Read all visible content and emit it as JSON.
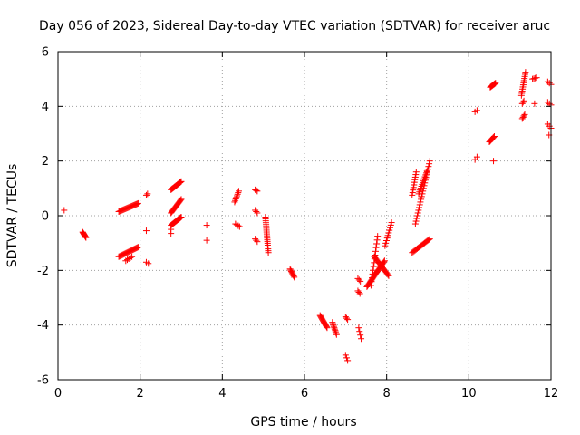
{
  "chart_data": {
    "type": "scatter",
    "title": "Day 056 of 2023, Sidereal Day-to-day VTEC variation (SDTVAR) for receiver aruc",
    "xlabel": "GPS time / hours",
    "ylabel": "SDTVAR / TECUs",
    "xlim": [
      0,
      12
    ],
    "ylim": [
      -6,
      6
    ],
    "xticks": [
      0,
      2,
      4,
      6,
      8,
      10,
      12
    ],
    "yticks": [
      -6,
      -4,
      -2,
      0,
      2,
      4,
      6
    ],
    "xtick_labels": [
      "0",
      "2",
      "4",
      "6",
      "8",
      "10",
      "12"
    ],
    "ytick_labels": [
      "-6",
      "-4",
      "-2",
      "0",
      "2",
      "4",
      "6"
    ],
    "grid": true,
    "marker": "+",
    "marker_color": "#ff0000",
    "segments": [
      [
        0.15,
        0.2,
        0.15,
        0.2,
        1
      ],
      [
        0.6,
        -0.6,
        0.68,
        -0.8,
        9
      ],
      [
        1.48,
        0.15,
        1.95,
        0.45,
        22
      ],
      [
        1.48,
        -1.5,
        1.95,
        -1.15,
        22
      ],
      [
        1.65,
        -1.65,
        1.8,
        -1.5,
        5
      ],
      [
        2.15,
        0.75,
        2.18,
        0.8,
        2
      ],
      [
        2.15,
        -0.55,
        2.18,
        -0.55,
        1
      ],
      [
        2.15,
        -1.7,
        2.2,
        -1.75,
        2
      ],
      [
        2.75,
        0.95,
        3.0,
        1.25,
        16
      ],
      [
        2.75,
        0.1,
        3.0,
        0.6,
        16
      ],
      [
        2.75,
        -0.35,
        3.0,
        -0.05,
        16
      ],
      [
        2.75,
        -0.5,
        2.75,
        -0.65,
        2
      ],
      [
        3.62,
        -0.35,
        3.62,
        -0.35,
        1
      ],
      [
        3.62,
        -0.9,
        3.62,
        -0.9,
        1
      ],
      [
        4.3,
        0.5,
        4.4,
        0.9,
        8
      ],
      [
        4.32,
        -0.3,
        4.42,
        -0.4,
        4
      ],
      [
        4.8,
        0.95,
        4.85,
        0.9,
        3
      ],
      [
        4.8,
        0.2,
        4.85,
        0.1,
        3
      ],
      [
        4.8,
        -0.85,
        4.85,
        -0.95,
        3
      ],
      [
        5.05,
        -0.05,
        5.12,
        -1.35,
        20
      ],
      [
        5.65,
        -1.95,
        5.75,
        -2.25,
        8
      ],
      [
        6.38,
        -3.65,
        6.55,
        -4.1,
        14
      ],
      [
        6.68,
        -3.9,
        6.78,
        -4.35,
        10
      ],
      [
        7.0,
        -3.7,
        7.05,
        -3.8,
        3
      ],
      [
        7.0,
        -5.1,
        7.05,
        -5.3,
        3
      ],
      [
        7.3,
        -2.75,
        7.35,
        -2.85,
        3
      ],
      [
        7.3,
        -2.3,
        7.36,
        -2.4,
        3
      ],
      [
        7.32,
        -4.1,
        7.38,
        -4.5,
        4
      ],
      [
        7.52,
        -2.6,
        7.95,
        -1.65,
        28
      ],
      [
        7.62,
        -2.55,
        7.78,
        -0.75,
        14
      ],
      [
        7.7,
        -1.5,
        8.05,
        -2.2,
        18
      ],
      [
        7.96,
        -1.1,
        8.12,
        -0.25,
        10
      ],
      [
        8.62,
        0.75,
        8.72,
        1.6,
        10
      ],
      [
        8.62,
        -1.35,
        9.05,
        -0.85,
        18
      ],
      [
        8.7,
        -0.3,
        9.05,
        2.0,
        24
      ],
      [
        8.78,
        0.8,
        9.0,
        1.7,
        14
      ],
      [
        10.15,
        3.8,
        10.2,
        3.85,
        2
      ],
      [
        10.15,
        2.05,
        10.2,
        2.15,
        2
      ],
      [
        10.5,
        2.7,
        10.62,
        2.9,
        8
      ],
      [
        10.52,
        4.7,
        10.65,
        4.85,
        10
      ],
      [
        10.6,
        2.0,
        10.6,
        2.0,
        1
      ],
      [
        11.28,
        4.4,
        11.38,
        5.25,
        12
      ],
      [
        11.3,
        3.55,
        11.36,
        3.7,
        4
      ],
      [
        11.3,
        4.1,
        11.34,
        4.2,
        3
      ],
      [
        11.55,
        5.0,
        11.65,
        5.05,
        4
      ],
      [
        11.6,
        4.1,
        11.6,
        4.1,
        1
      ],
      [
        11.92,
        4.9,
        12.0,
        4.8,
        3
      ],
      [
        11.92,
        4.15,
        12.0,
        4.05,
        3
      ],
      [
        11.92,
        3.35,
        12.0,
        3.2,
        3
      ],
      [
        11.95,
        2.95,
        11.95,
        2.95,
        1
      ]
    ]
  }
}
